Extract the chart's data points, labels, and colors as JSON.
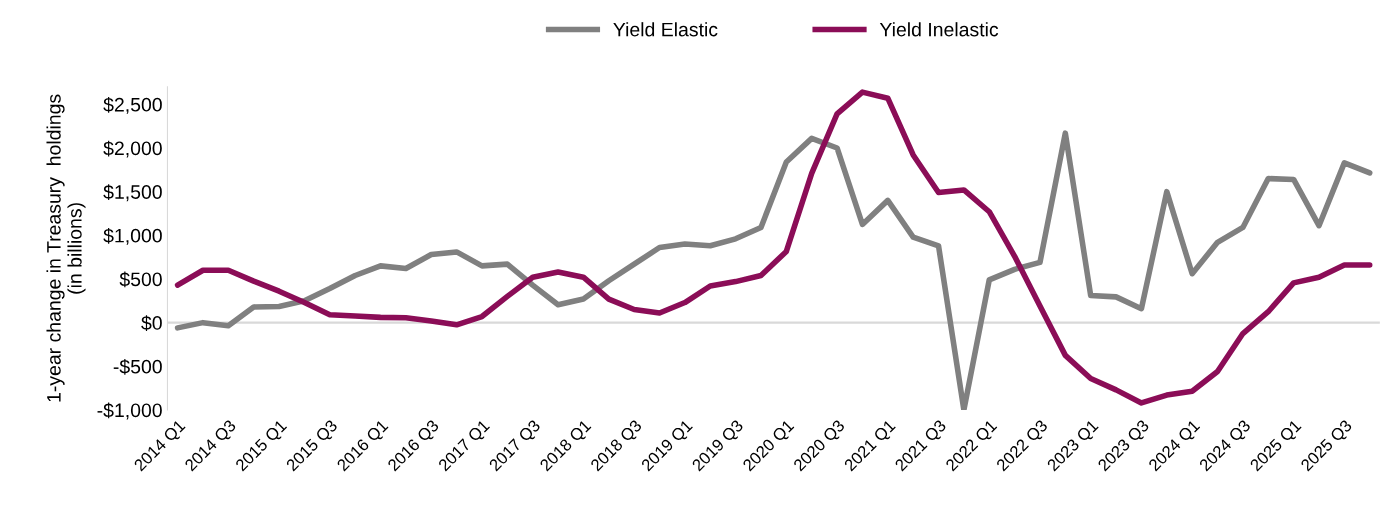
{
  "chart_data": {
    "type": "line",
    "ylabel": "1-year change in Treasury  holdings\n(in billions)",
    "categories": [
      "2014 Q1",
      null,
      "2014 Q3",
      null,
      "2015 Q1",
      null,
      "2015 Q3",
      null,
      "2016 Q1",
      null,
      "2016 Q3",
      null,
      "2017 Q1",
      null,
      "2017 Q3",
      null,
      "2018 Q1",
      null,
      "2018 Q3",
      null,
      "2019 Q1",
      null,
      "2019 Q3",
      null,
      "2020 Q1",
      null,
      "2020 Q3",
      null,
      "2021 Q1",
      null,
      "2021 Q3",
      null,
      "2022 Q1",
      null,
      "2022 Q3",
      null,
      "2023 Q1",
      null,
      "2023 Q3",
      null,
      "2024 Q1",
      null,
      "2024 Q3",
      null,
      "2025 Q1",
      null,
      "2025 Q3",
      null
    ],
    "series": [
      {
        "name": "Yield Elastic",
        "color": "#808080",
        "values": [
          -60,
          0,
          -35,
          180,
          185,
          250,
          390,
          540,
          650,
          620,
          780,
          810,
          650,
          670,
          430,
          205,
          270,
          480,
          670,
          860,
          900,
          880,
          960,
          1090,
          1840,
          2110,
          2000,
          1125,
          1400,
          980,
          880,
          -1000,
          490,
          610,
          690,
          2170,
          310,
          295,
          160,
          1500,
          560,
          920,
          1090,
          1650,
          1640,
          1110,
          1830,
          1715
        ]
      },
      {
        "name": "Yield Inelastic",
        "color": "#8b0d57",
        "values": [
          430,
          600,
          600,
          475,
          360,
          230,
          90,
          75,
          60,
          55,
          20,
          -25,
          70,
          300,
          520,
          580,
          520,
          270,
          150,
          110,
          230,
          420,
          470,
          540,
          815,
          1710,
          2390,
          2640,
          2570,
          1920,
          1490,
          1520,
          1270,
          760,
          190,
          -375,
          -640,
          -770,
          -920,
          -830,
          -785,
          -560,
          -125,
          125,
          455,
          520,
          660,
          660
        ]
      }
    ],
    "ylim": [
      -1000,
      2700
    ],
    "yticks": [
      {
        "value": -1000,
        "label": "-$1,000"
      },
      {
        "value": -500,
        "label": "-$500"
      },
      {
        "value": 0,
        "label": "$0"
      },
      {
        "value": 500,
        "label": "$500"
      },
      {
        "value": 1000,
        "label": "$1,000"
      },
      {
        "value": 1500,
        "label": "$1,500"
      },
      {
        "value": 2000,
        "label": "$2,000"
      },
      {
        "value": 2500,
        "label": "$2,500"
      }
    ],
    "ref_lines": [
      {
        "axis": "y",
        "value": 0,
        "color": "#d9d9d9"
      }
    ],
    "legend": "top",
    "grid": false,
    "marker": "none",
    "line_style": "solid"
  }
}
